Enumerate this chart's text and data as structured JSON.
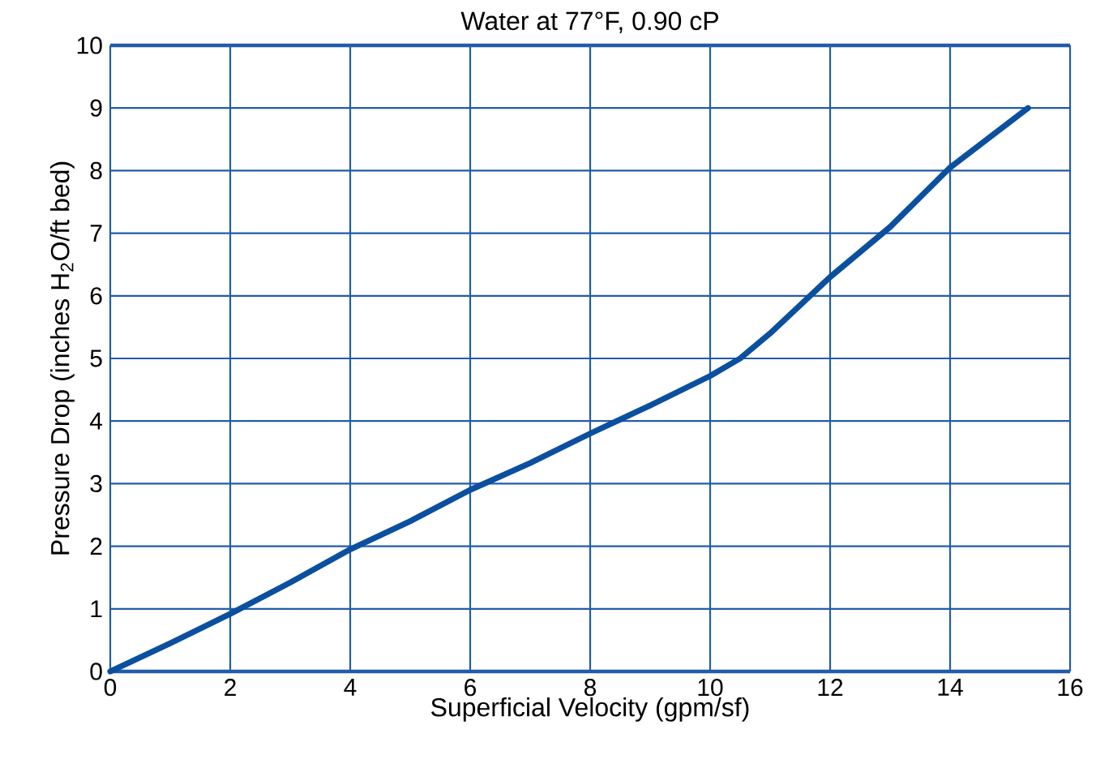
{
  "chart_data": {
    "type": "line",
    "title": "Water at 77°F, 0.90 cP",
    "xlabel": "Superficial Velocity (gpm/sf)",
    "ylabel": "Pressure Drop (inches H$_{2}$O/ft bed)",
    "x": [
      0,
      1,
      2,
      3,
      4,
      5,
      6,
      7,
      8,
      9,
      10,
      10.5,
      11,
      11.5,
      12,
      13,
      14,
      15.3
    ],
    "series": [
      {
        "color": "#0b4f9f",
        "values": [
          0,
          0.45,
          0.92,
          1.42,
          1.95,
          2.4,
          2.9,
          3.33,
          3.8,
          4.25,
          4.72,
          5.0,
          5.4,
          5.85,
          6.3,
          7.1,
          8.05,
          9.0
        ]
      }
    ],
    "xlim": [
      0,
      16
    ],
    "ylim": [
      0,
      10
    ],
    "xticks": [
      0,
      2,
      4,
      6,
      8,
      10,
      12,
      14,
      16
    ],
    "yticks": [
      0,
      1,
      2,
      3,
      4,
      5,
      6,
      7,
      8,
      9,
      10
    ],
    "grid": true,
    "marker": "none",
    "line_style": "solid"
  }
}
